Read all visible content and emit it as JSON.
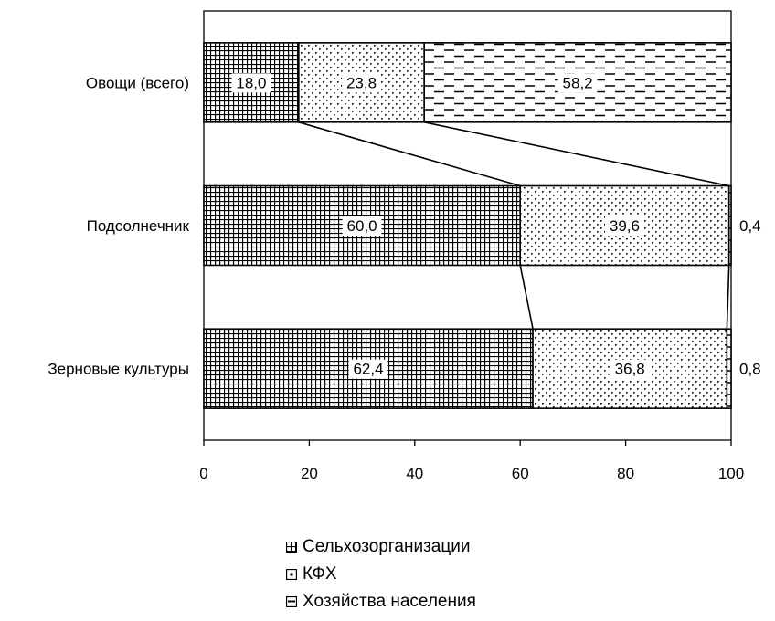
{
  "chart_data": {
    "type": "bar",
    "orientation": "horizontal",
    "stacked": true,
    "categories": [
      "Овощи (всего)",
      "Подсолнечник",
      "Зерновые культуры"
    ],
    "series": [
      {
        "name": "Сельхозорганизации",
        "values": [
          18.0,
          60.0,
          62.4
        ],
        "labels": [
          "18,0",
          "60,0",
          "62,4"
        ],
        "pattern": "grid"
      },
      {
        "name": "КФХ",
        "values": [
          23.8,
          39.6,
          36.8
        ],
        "labels": [
          "23,8",
          "39,6",
          "36,8"
        ],
        "pattern": "dots"
      },
      {
        "name": "Хозяйства населения",
        "values": [
          58.2,
          0.4,
          0.8
        ],
        "labels": [
          "58,2",
          "0,4",
          "0,8"
        ],
        "pattern": "dashes"
      }
    ],
    "xlim": [
      0,
      100
    ],
    "xticks": [
      "0",
      "20",
      "40",
      "60",
      "80",
      "100"
    ],
    "series_lines": true,
    "grid": false,
    "legend": "bottom"
  }
}
